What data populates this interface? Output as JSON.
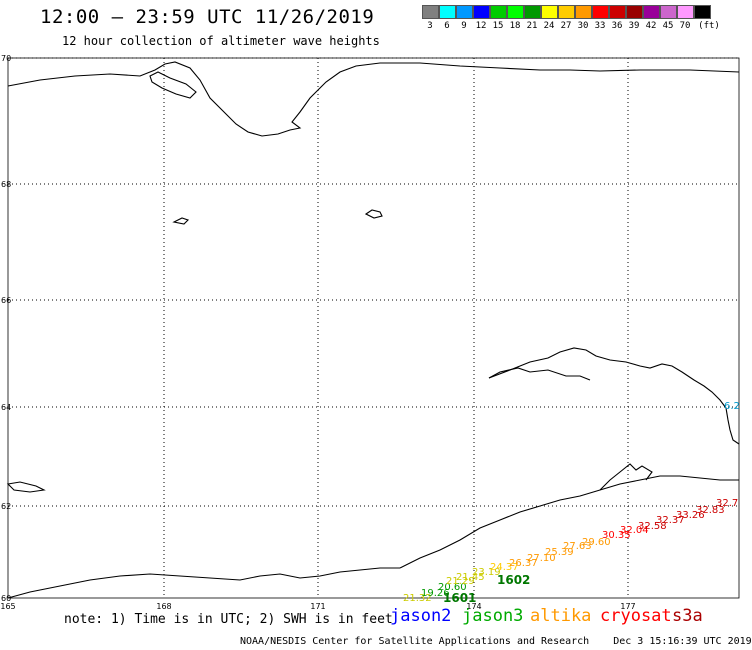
{
  "title": "12:00 – 23:59 UTC 11/26/2019",
  "subtitle": "12 hour collection of altimeter wave heights",
  "scale": {
    "colors": [
      "#808080",
      "#00ffff",
      "#0099ff",
      "#0000ff",
      "#00cc00",
      "#00ff00",
      "#009900",
      "#ffff00",
      "#ffcc00",
      "#ff9900",
      "#ff0000",
      "#cc0000",
      "#990000",
      "#990099",
      "#cc66cc",
      "#ff99ff",
      "#000000"
    ],
    "labels": [
      "3",
      "6",
      "9",
      "12",
      "15",
      "18",
      "21",
      "24",
      "27",
      "30",
      "33",
      "36",
      "39",
      "42",
      "45",
      "70"
    ],
    "unit": "(ft)"
  },
  "lat_labels": [
    "70",
    "68",
    "66",
    "64",
    "62",
    "60"
  ],
  "lon_labels": [
    "165",
    "168",
    "171",
    "174",
    "177"
  ],
  "wave_labels": [
    {
      "text": "21.32",
      "color": "#cccc00"
    },
    {
      "text": "19.26",
      "color": "#009900"
    },
    {
      "text": "20.60",
      "color": "#009900"
    },
    {
      "text": "21.29",
      "color": "#cccc00"
    },
    {
      "text": "21.45",
      "color": "#cccc00"
    },
    {
      "text": "23.19",
      "color": "#cccc00"
    },
    {
      "text": "24.37",
      "color": "#ffcc00"
    },
    {
      "text": "26.37",
      "color": "#ff9900"
    },
    {
      "text": "27.10",
      "color": "#ff9900"
    },
    {
      "text": "25.39",
      "color": "#ff9900"
    },
    {
      "text": "27.63",
      "color": "#ff9900"
    },
    {
      "text": "29.60",
      "color": "#ff9900"
    },
    {
      "text": "30.35",
      "color": "#ff0000"
    },
    {
      "text": "32.04",
      "color": "#ff0000"
    },
    {
      "text": "32.58",
      "color": "#cc0000"
    },
    {
      "text": "32.37",
      "color": "#cc0000"
    },
    {
      "text": "33.26",
      "color": "#cc0000"
    },
    {
      "text": "32.83",
      "color": "#cc0000"
    },
    {
      "text": "32.7",
      "color": "#cc0000"
    },
    {
      "text": "6.2",
      "color": "#0099cc"
    }
  ],
  "pass_labels": [
    {
      "text": "1601",
      "color": "#007700"
    },
    {
      "text": "1602",
      "color": "#007700"
    }
  ],
  "note": "note: 1) Time is in UTC; 2) SWH is in feet",
  "legend": [
    {
      "text": "jason2",
      "color": "#0000ff"
    },
    {
      "text": "jason3",
      "color": "#00aa00"
    },
    {
      "text": "altika",
      "color": "#ff9900"
    },
    {
      "text": "cryosat",
      "color": "#ff0000"
    },
    {
      "text": "s3a",
      "color": "#aa0000"
    }
  ],
  "footer": {
    "source": "NOAA/NESDIS Center for Satellite Applications and Research",
    "date": "Dec  3 15:16:39 UTC 2019"
  }
}
